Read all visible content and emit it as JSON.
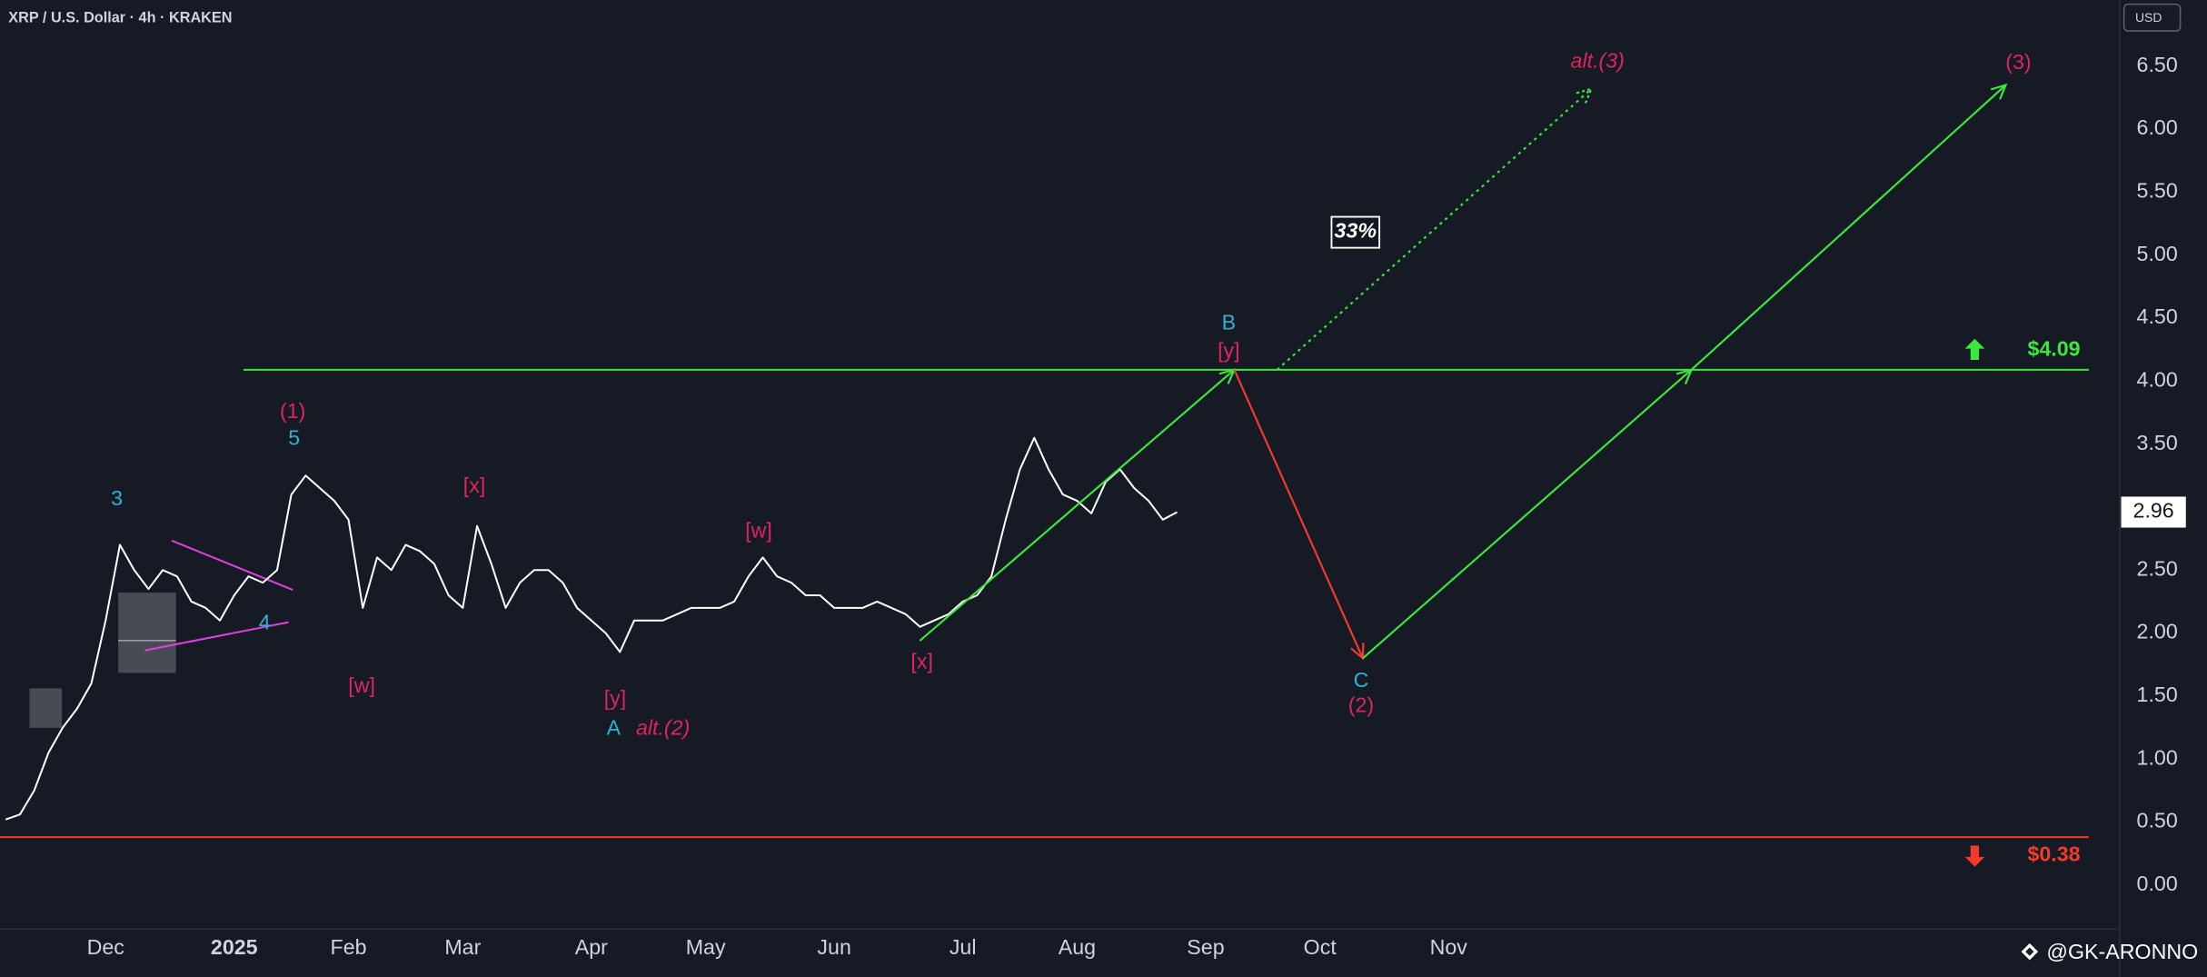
{
  "header": {
    "symbol": "XRP / U.S. Dollar · 4h · KRAKEN",
    "currency": "USD",
    "watermark": "@GK-ARONNO"
  },
  "chart_data": {
    "type": "line",
    "categories": [
      null,
      null,
      null,
      null,
      null,
      null,
      null,
      "Dec",
      null,
      null,
      null,
      null,
      null,
      null,
      null,
      null,
      "2025",
      null,
      null,
      null,
      null,
      null,
      null,
      null,
      "Feb",
      null,
      null,
      null,
      null,
      null,
      null,
      null,
      "Mar",
      null,
      null,
      null,
      null,
      null,
      null,
      null,
      null,
      "Apr",
      null,
      null,
      null,
      null,
      null,
      null,
      null,
      "May",
      null,
      null,
      null,
      null,
      null,
      null,
      null,
      null,
      "Jun",
      null,
      null,
      null,
      null,
      null,
      null,
      null,
      null,
      "Jul",
      null,
      null,
      null,
      null,
      null,
      null,
      null,
      "Aug",
      null,
      null,
      null,
      null,
      null,
      null,
      null,
      null,
      "Sep",
      null,
      null,
      null,
      null,
      null,
      null,
      null,
      "Oct",
      null,
      null,
      null,
      null,
      null,
      null,
      null,
      null,
      "Nov",
      null,
      null,
      null,
      null,
      null,
      null,
      null,
      null,
      null,
      null,
      null,
      null,
      null,
      null,
      null,
      null,
      null,
      null,
      null,
      null,
      null,
      null,
      null,
      null,
      null,
      null,
      null,
      null,
      null,
      null,
      null,
      null,
      null,
      null,
      null,
      null,
      null,
      null,
      null,
      null,
      null,
      null,
      null,
      null,
      null,
      null
    ],
    "series": [
      {
        "color": "#ffffff",
        "values": [
          0.52,
          0.56,
          0.75,
          1.05,
          1.25,
          1.4,
          1.6,
          2.1,
          2.7,
          2.5,
          2.35,
          2.5,
          2.45,
          2.25,
          2.2,
          2.1,
          2.3,
          2.45,
          2.4,
          2.5,
          3.1,
          3.25,
          3.15,
          3.05,
          2.9,
          2.2,
          2.6,
          2.5,
          2.7,
          2.65,
          2.55,
          2.3,
          2.2,
          2.85,
          2.55,
          2.2,
          2.4,
          2.5,
          2.5,
          2.4,
          2.2,
          2.1,
          2.0,
          1.85,
          2.1,
          2.1,
          2.1,
          2.15,
          2.2,
          2.2,
          2.2,
          2.25,
          2.45,
          2.6,
          2.45,
          2.4,
          2.3,
          2.3,
          2.2,
          2.2,
          2.2,
          2.25,
          2.2,
          2.15,
          2.05,
          2.1,
          2.15,
          2.25,
          2.3,
          2.45,
          2.9,
          3.3,
          3.55,
          3.3,
          3.1,
          3.05,
          2.95,
          3.2,
          3.3,
          3.15,
          3.05,
          2.9,
          2.96,
          null,
          null,
          null,
          null,
          null,
          null,
          null,
          null,
          null,
          null,
          null,
          null,
          null,
          null,
          null,
          null,
          null,
          null,
          null,
          null,
          null,
          null,
          null,
          null,
          null,
          null,
          null,
          null,
          null,
          null,
          null,
          null,
          null,
          null,
          null,
          null,
          null,
          null,
          null,
          null,
          null,
          null,
          null,
          null,
          null,
          null,
          null,
          null,
          null,
          null,
          null,
          null,
          null,
          null,
          null,
          null,
          null,
          null,
          null,
          null,
          null,
          null,
          null,
          null,
          null
        ]
      },
      {
        "segment_colors": [
          "#3de63d",
          "#f23b2b",
          "#3de63d",
          "#3de63d"
        ],
        "values": [
          null,
          null,
          null,
          null,
          null,
          null,
          null,
          null,
          null,
          null,
          null,
          null,
          null,
          null,
          null,
          null,
          null,
          null,
          null,
          null,
          null,
          null,
          null,
          null,
          null,
          null,
          null,
          null,
          null,
          null,
          null,
          null,
          null,
          null,
          null,
          null,
          null,
          null,
          null,
          null,
          null,
          null,
          null,
          null,
          null,
          null,
          null,
          null,
          null,
          null,
          null,
          null,
          null,
          null,
          null,
          null,
          null,
          null,
          null,
          null,
          null,
          null,
          null,
          null,
          1.94,
          null,
          null,
          null,
          null,
          null,
          null,
          null,
          null,
          null,
          null,
          null,
          null,
          null,
          null,
          null,
          null,
          null,
          null,
          null,
          null,
          null,
          4.09,
          null,
          null,
          null,
          null,
          null,
          null,
          null,
          null,
          1.8,
          null,
          null,
          null,
          null,
          null,
          null,
          null,
          null,
          null,
          null,
          null,
          null,
          null,
          null,
          null,
          null,
          null,
          null,
          null,
          null,
          null,
          null,
          4.09,
          null,
          null,
          null,
          null,
          null,
          null,
          null,
          null,
          null,
          null,
          null,
          null,
          null,
          null,
          null,
          null,
          null,
          null,
          null,
          null,
          null,
          6.35,
          null,
          null,
          null,
          null,
          null,
          null,
          null
        ]
      },
      {
        "color": "#3de63d",
        "dotted": true,
        "values": [
          null,
          null,
          null,
          null,
          null,
          null,
          null,
          null,
          null,
          null,
          null,
          null,
          null,
          null,
          null,
          null,
          null,
          null,
          null,
          null,
          null,
          null,
          null,
          null,
          null,
          null,
          null,
          null,
          null,
          null,
          null,
          null,
          null,
          null,
          null,
          null,
          null,
          null,
          null,
          null,
          null,
          null,
          null,
          null,
          null,
          null,
          null,
          null,
          null,
          null,
          null,
          null,
          null,
          null,
          null,
          null,
          null,
          null,
          null,
          null,
          null,
          null,
          null,
          null,
          null,
          null,
          null,
          null,
          null,
          null,
          null,
          null,
          null,
          null,
          null,
          null,
          null,
          null,
          null,
          null,
          null,
          null,
          null,
          null,
          null,
          null,
          null,
          null,
          null,
          4.09,
          null,
          null,
          null,
          null,
          null,
          null,
          null,
          null,
          null,
          null,
          null,
          null,
          null,
          null,
          null,
          null,
          null,
          null,
          null,
          null,
          null,
          6.32,
          null,
          null,
          null,
          null,
          null,
          null,
          null,
          null,
          null,
          null,
          null,
          null,
          null,
          null,
          null,
          null,
          null,
          null,
          null,
          null,
          null,
          null,
          null,
          null,
          null,
          null,
          null,
          null,
          null,
          null,
          null,
          null,
          null,
          null,
          null,
          null
        ]
      }
    ],
    "ylim": [
      -0.35,
      7.025
    ],
    "yticks": [
      {
        "value": 0,
        "label": "0.00"
      },
      {
        "value": 0.5,
        "label": "0.50"
      },
      {
        "value": 1,
        "label": "1.00"
      },
      {
        "value": 1.5,
        "label": "1.50"
      },
      {
        "value": 2,
        "label": "2.00"
      },
      {
        "value": 2.5,
        "label": "2.50"
      },
      {
        "value": 3,
        "label": "3.00"
      },
      {
        "value": 3.5,
        "label": "3.50"
      },
      {
        "value": 4,
        "label": "4.00"
      },
      {
        "value": 4.5,
        "label": "4.50"
      },
      {
        "value": 5,
        "label": "5.00"
      },
      {
        "value": 5.5,
        "label": "5.50"
      },
      {
        "value": 6,
        "label": "6.00"
      },
      {
        "value": 6.5,
        "label": "6.50"
      }
    ],
    "grid": false,
    "levels": [
      {
        "value": 4.09,
        "label": "$4.09",
        "color": "#3de63d"
      },
      {
        "value": 0.38,
        "label": "$0.38",
        "color": "#f23b2b"
      }
    ],
    "annotations": [
      {
        "text": "3",
        "color": "#2bb3d4"
      },
      {
        "text": "5",
        "color": "#2bb3d4"
      },
      {
        "text": "(1)",
        "color": "#e0245e"
      },
      {
        "text": "4",
        "color": "#2bb3d4"
      },
      {
        "text": "[w]",
        "color": "#e0245e"
      },
      {
        "text": "[x]",
        "color": "#e0245e"
      },
      {
        "text": "[y]",
        "color": "#e0245e"
      },
      {
        "text": "A",
        "color": "#2bb3d4"
      },
      {
        "text": "alt.(2)",
        "color": "#e0245e"
      },
      {
        "text": "[w]",
        "color": "#e0245e"
      },
      {
        "text": "[x]",
        "color": "#e0245e"
      },
      {
        "text": "B",
        "color": "#2bb3d4"
      },
      {
        "text": "[y]",
        "color": "#e0245e"
      },
      {
        "text": "C",
        "color": "#2bb3d4"
      },
      {
        "text": "(2)",
        "color": "#e0245e"
      },
      {
        "text": "alt.(3)",
        "color": "#e0245e"
      },
      {
        "text": "(3)",
        "color": "#e0245e"
      },
      {
        "text": "33%",
        "color": "#ffffff"
      }
    ]
  }
}
